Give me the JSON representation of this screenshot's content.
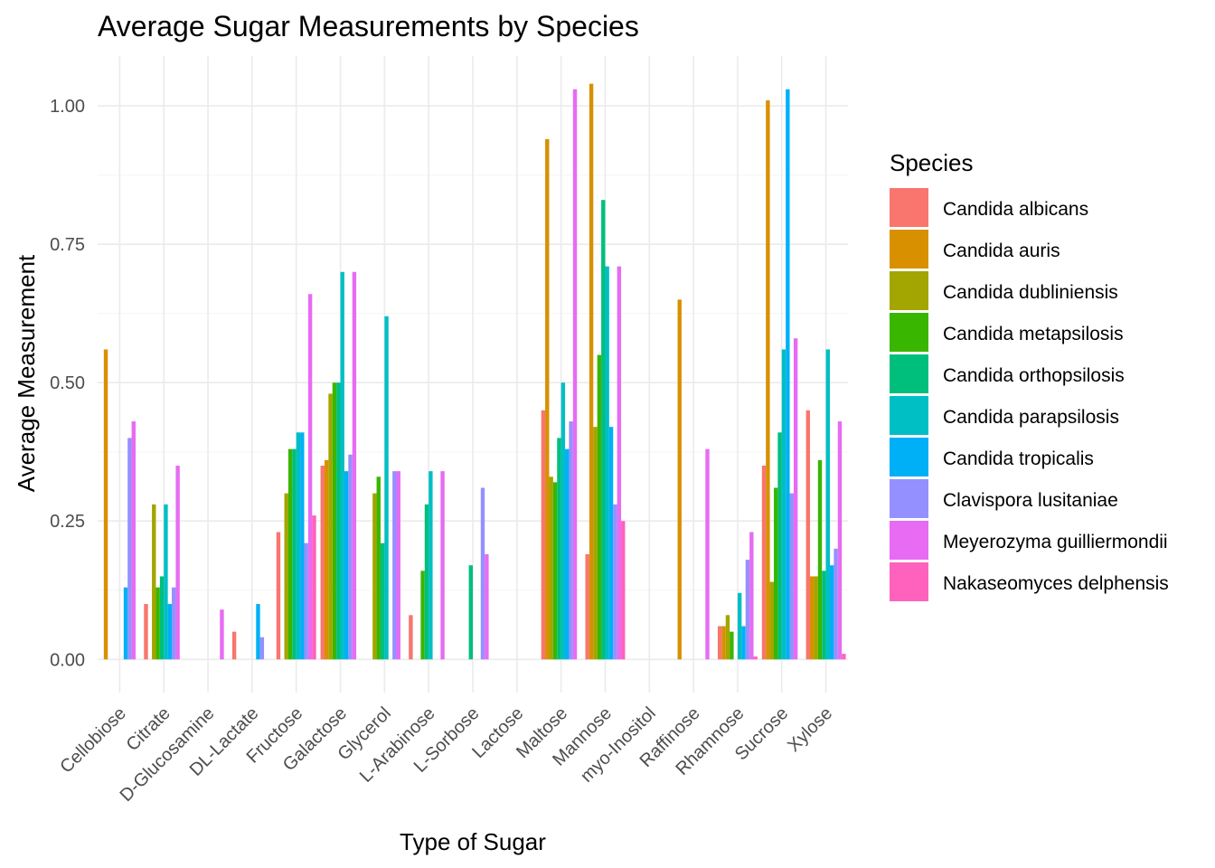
{
  "chart_data": {
    "type": "bar",
    "title": "Average Sugar Measurements by Species",
    "xlabel": "Type of Sugar",
    "ylabel": "Average Measurement",
    "ylim": [
      -0.06,
      1.09
    ],
    "yticks": [
      0.0,
      0.25,
      0.5,
      0.75,
      1.0
    ],
    "ytick_labels": [
      "0.00",
      "0.25",
      "0.50",
      "0.75",
      "1.00"
    ],
    "grid": true,
    "legend_title": "Species",
    "legend_position": "right",
    "categories": [
      "Cellobiose",
      "Citrate",
      "D-Glucosamine",
      "DL-Lactate",
      "Fructose",
      "Galactose",
      "Glycerol",
      "L-Arabinose",
      "L-Sorbose",
      "Lactose",
      "Maltose",
      "Mannose",
      "myo-Inositol",
      "Raffinose",
      "Rhamnose",
      "Sucrose",
      "Xylose"
    ],
    "series": [
      {
        "name": "Candida albicans",
        "color": "#F8766D",
        "values": [
          0,
          0.1,
          0,
          0.05,
          0.23,
          0.35,
          0,
          0.08,
          0,
          0,
          0.45,
          0.19,
          0,
          0,
          0.06,
          0.35,
          0.45
        ]
      },
      {
        "name": "Candida auris",
        "color": "#D89000",
        "values": [
          0.56,
          0,
          0,
          0,
          0,
          0.36,
          0,
          0,
          0,
          0,
          0.94,
          1.04,
          0,
          0.65,
          0.06,
          1.01,
          0.15
        ]
      },
      {
        "name": "Candida dubliniensis",
        "color": "#A3A500",
        "values": [
          0,
          0.28,
          0,
          0,
          0.3,
          0.48,
          0.3,
          0,
          0,
          0,
          0.33,
          0.42,
          0,
          0,
          0.08,
          0.14,
          0.15
        ]
      },
      {
        "name": "Candida metapsilosis",
        "color": "#39B600",
        "values": [
          0,
          0.13,
          0,
          0,
          0.38,
          0.5,
          0.33,
          0.16,
          0,
          0,
          0.32,
          0.55,
          0,
          0,
          0.05,
          0.31,
          0.36
        ]
      },
      {
        "name": "Candida orthopsilosis",
        "color": "#00BF7D",
        "values": [
          0,
          0.15,
          0,
          0,
          0.38,
          0.5,
          0.21,
          0.28,
          0.17,
          0,
          0.4,
          0.83,
          0,
          0,
          0,
          0.41,
          0.16
        ]
      },
      {
        "name": "Candida parapsilosis",
        "color": "#00BFC4",
        "values": [
          0,
          0.28,
          0,
          0,
          0.41,
          0.7,
          0.62,
          0.34,
          0,
          0,
          0.5,
          0.71,
          0,
          0,
          0.12,
          0.56,
          0.56
        ]
      },
      {
        "name": "Candida tropicalis",
        "color": "#00B0F6",
        "values": [
          0.13,
          0.1,
          0,
          0.1,
          0.41,
          0.34,
          0,
          0,
          0,
          0,
          0.38,
          0.42,
          0,
          0,
          0.06,
          1.03,
          0.17
        ]
      },
      {
        "name": "Clavispora lusitaniae",
        "color": "#9590FF",
        "values": [
          0.4,
          0.13,
          0,
          0.04,
          0.21,
          0.37,
          0.34,
          0,
          0.31,
          0,
          0.43,
          0.28,
          0,
          0,
          0.18,
          0.3,
          0.2
        ]
      },
      {
        "name": "Meyerozyma guilliermondii",
        "color": "#E76BF3",
        "values": [
          0.43,
          0.35,
          0.09,
          0,
          0.66,
          0.7,
          0.34,
          0.34,
          0.19,
          0,
          1.03,
          0.71,
          0,
          0.38,
          0.23,
          0.58,
          0.43
        ]
      },
      {
        "name": "Nakaseomyces delphensis",
        "color": "#FF62BC",
        "values": [
          0,
          0,
          0,
          0,
          0.26,
          0,
          0,
          0,
          0,
          0,
          0,
          0.25,
          0,
          0,
          0.005,
          0,
          0.01
        ]
      }
    ]
  }
}
